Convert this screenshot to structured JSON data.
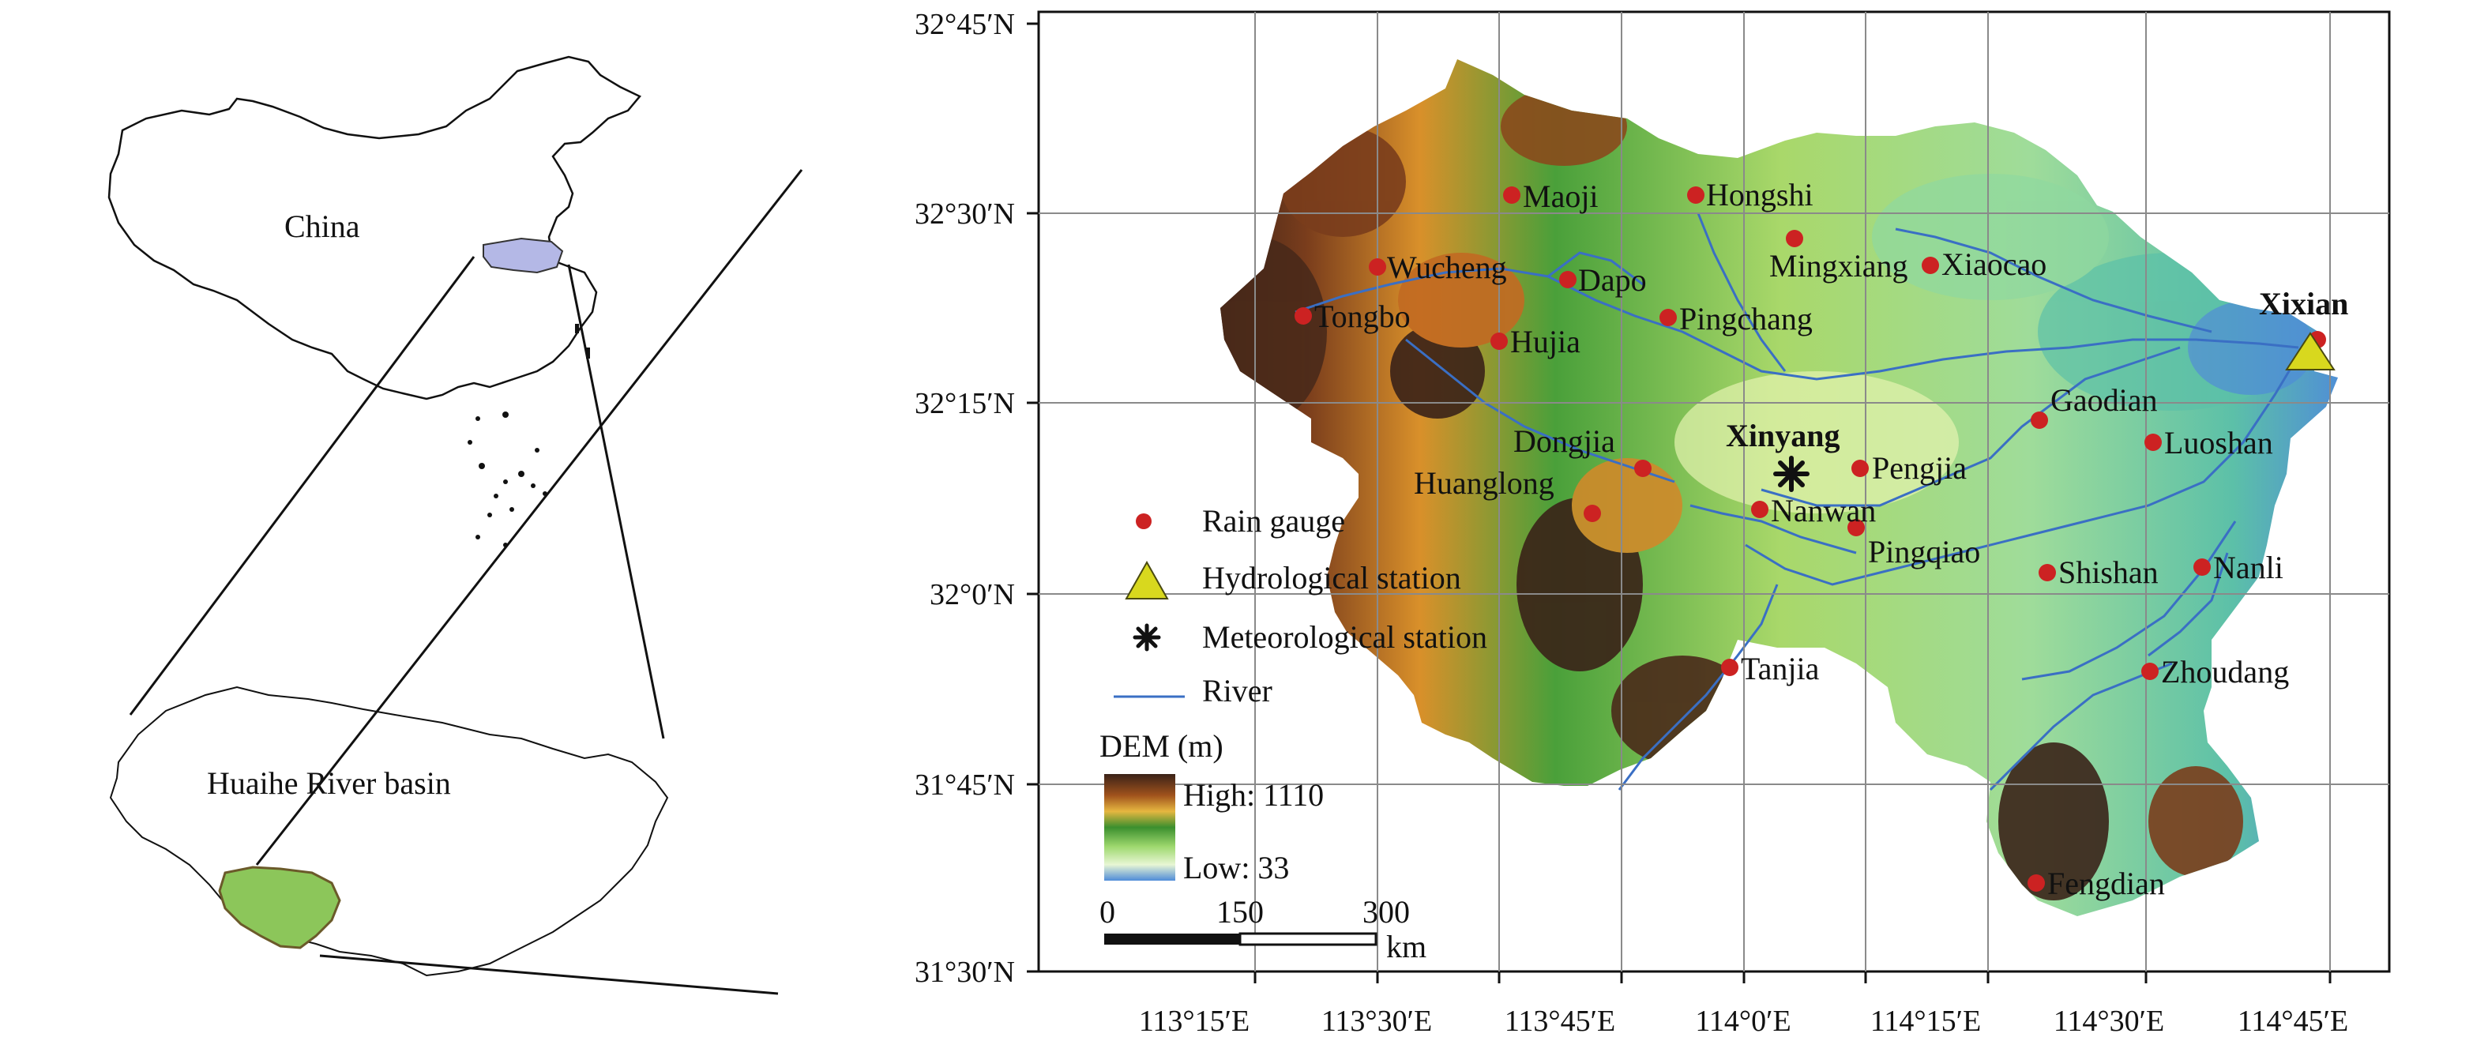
{
  "colors": {
    "gauge": "#cc2222",
    "river": "#3a6fc4",
    "station_fill": "#d8d81e",
    "study_area_fill": "#8cc65a",
    "china_highlight": "#b4b8e6",
    "dem_high": "#3a2218",
    "dem_low": "#4f8cd8",
    "grid": "#8a8a8a"
  },
  "inset": {
    "china_label": "China",
    "basin_label": "Huaihe River basin"
  },
  "axes": {
    "lat_ticks": [
      "32°45′N",
      "32°30′N",
      "32°15′N",
      "32°0′N",
      "31°45′N",
      "31°30′N"
    ],
    "lon_ticks": [
      "113°15′E",
      "113°30′E",
      "113°45′E",
      "114°0′E",
      "114°15′E",
      "114°30′E",
      "114°45′E"
    ]
  },
  "places": [
    {
      "name": "Maoji",
      "type": "gauge"
    },
    {
      "name": "Hongshi",
      "type": "gauge"
    },
    {
      "name": "Mingxiang",
      "type": "gauge"
    },
    {
      "name": "Xiaocao",
      "type": "gauge"
    },
    {
      "name": "Wucheng",
      "type": "gauge"
    },
    {
      "name": "Dapo",
      "type": "gauge"
    },
    {
      "name": "Pingchang",
      "type": "gauge"
    },
    {
      "name": "Tongbo",
      "type": "gauge"
    },
    {
      "name": "Hujia",
      "type": "gauge"
    },
    {
      "name": "Gaodian",
      "type": "gauge"
    },
    {
      "name": "Luoshan",
      "type": "gauge"
    },
    {
      "name": "Dongjia",
      "type": "gauge"
    },
    {
      "name": "Huanglong",
      "type": "gauge"
    },
    {
      "name": "Pengjia",
      "type": "gauge"
    },
    {
      "name": "Nanwan",
      "type": "gauge"
    },
    {
      "name": "Pingqiao",
      "type": "gauge"
    },
    {
      "name": "Shishan",
      "type": "gauge"
    },
    {
      "name": "Nanli",
      "type": "gauge"
    },
    {
      "name": "Tanjia",
      "type": "gauge"
    },
    {
      "name": "Zhoudang",
      "type": "gauge"
    },
    {
      "name": "Fengdian",
      "type": "gauge"
    },
    {
      "name": "Xixian",
      "type": "hydro"
    },
    {
      "name": "Xinyang",
      "type": "met"
    }
  ],
  "legend": {
    "rain_gauge": "Rain gauge",
    "hydro_station": "Hydrological station",
    "met_station": "Meteorological station",
    "river": "River"
  },
  "dem": {
    "title": "DEM (m)",
    "high_label": "High: 1110",
    "low_label": "Low: 33"
  },
  "scalebar": {
    "ticks": [
      "0",
      "150",
      "300"
    ],
    "unit": "km"
  }
}
